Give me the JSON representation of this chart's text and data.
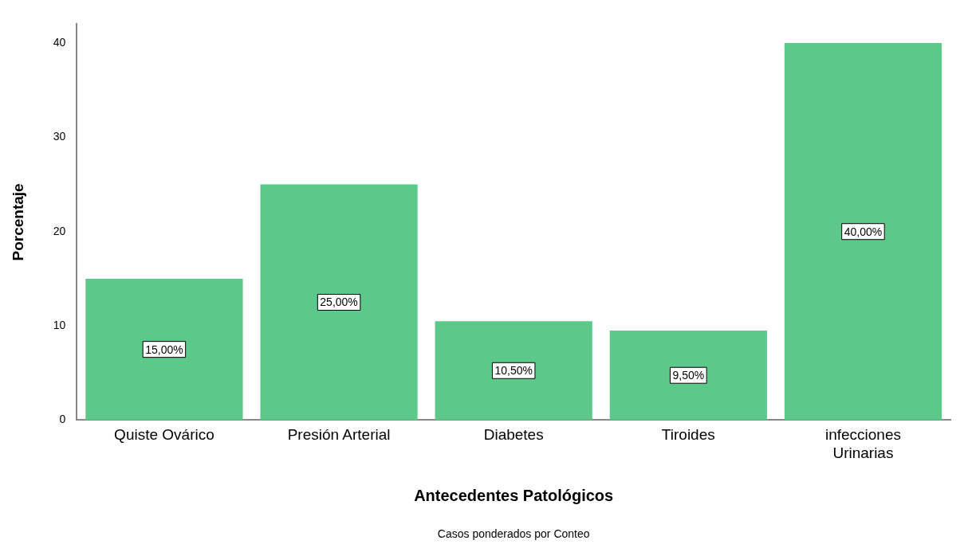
{
  "chart_data": {
    "type": "bar",
    "xlabel": "Antecedentes Patológicos",
    "ylabel": "Porcentaje",
    "categories": [
      "Quiste Ovárico",
      "Presión Arterial",
      "Diabetes",
      "Tiroides",
      "infecciones Urinarias"
    ],
    "values": [
      15,
      25,
      10.5,
      9.5,
      40
    ],
    "value_labels": [
      "15,00%",
      "25,00%",
      "10,50%",
      "9,50%",
      "40,00%"
    ],
    "color": "#5cc98b",
    "ylim": [
      0,
      42
    ],
    "yticks": [
      0,
      10,
      20,
      30,
      40
    ],
    "grid": false,
    "legend": false,
    "annotations": [
      "Casos ponderados por Conteo"
    ]
  }
}
